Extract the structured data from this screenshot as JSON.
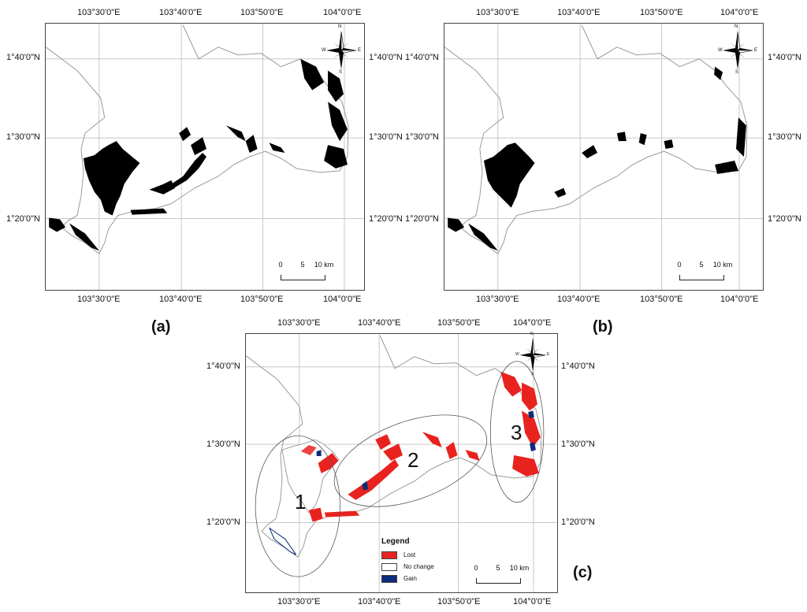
{
  "panels": {
    "a": {
      "label": "(a)"
    },
    "b": {
      "label": "(b)"
    },
    "c": {
      "label": "(c)"
    }
  },
  "longitude_ticks": [
    "103°30'0\"E",
    "103°40'0\"E",
    "103°50'0\"E",
    "104°0'0\"E"
  ],
  "latitude_ticks": [
    "1°40'0\"N",
    "1°30'0\"N",
    "1°20'0\"N"
  ],
  "north_arrow": {
    "n": "N",
    "s": "S",
    "e": "E",
    "w": "W",
    "icon": "compass-rose-icon"
  },
  "scale_bar": {
    "labels": [
      "0",
      "5",
      "10 km"
    ]
  },
  "legend": {
    "title": "Legend",
    "items": [
      {
        "label": "Lost",
        "color": "#e8231f"
      },
      {
        "label": "No change",
        "color": "#ffffff"
      },
      {
        "label": "Gain",
        "color": "#0a2c7a"
      }
    ]
  },
  "regions": [
    "1",
    "2",
    "3"
  ],
  "colors": {
    "mangrove": "#000000",
    "lost": "#e8231f",
    "gain": "#0a2c7a",
    "coast": "#9a9a9a",
    "grid": "#c8c8c8"
  }
}
